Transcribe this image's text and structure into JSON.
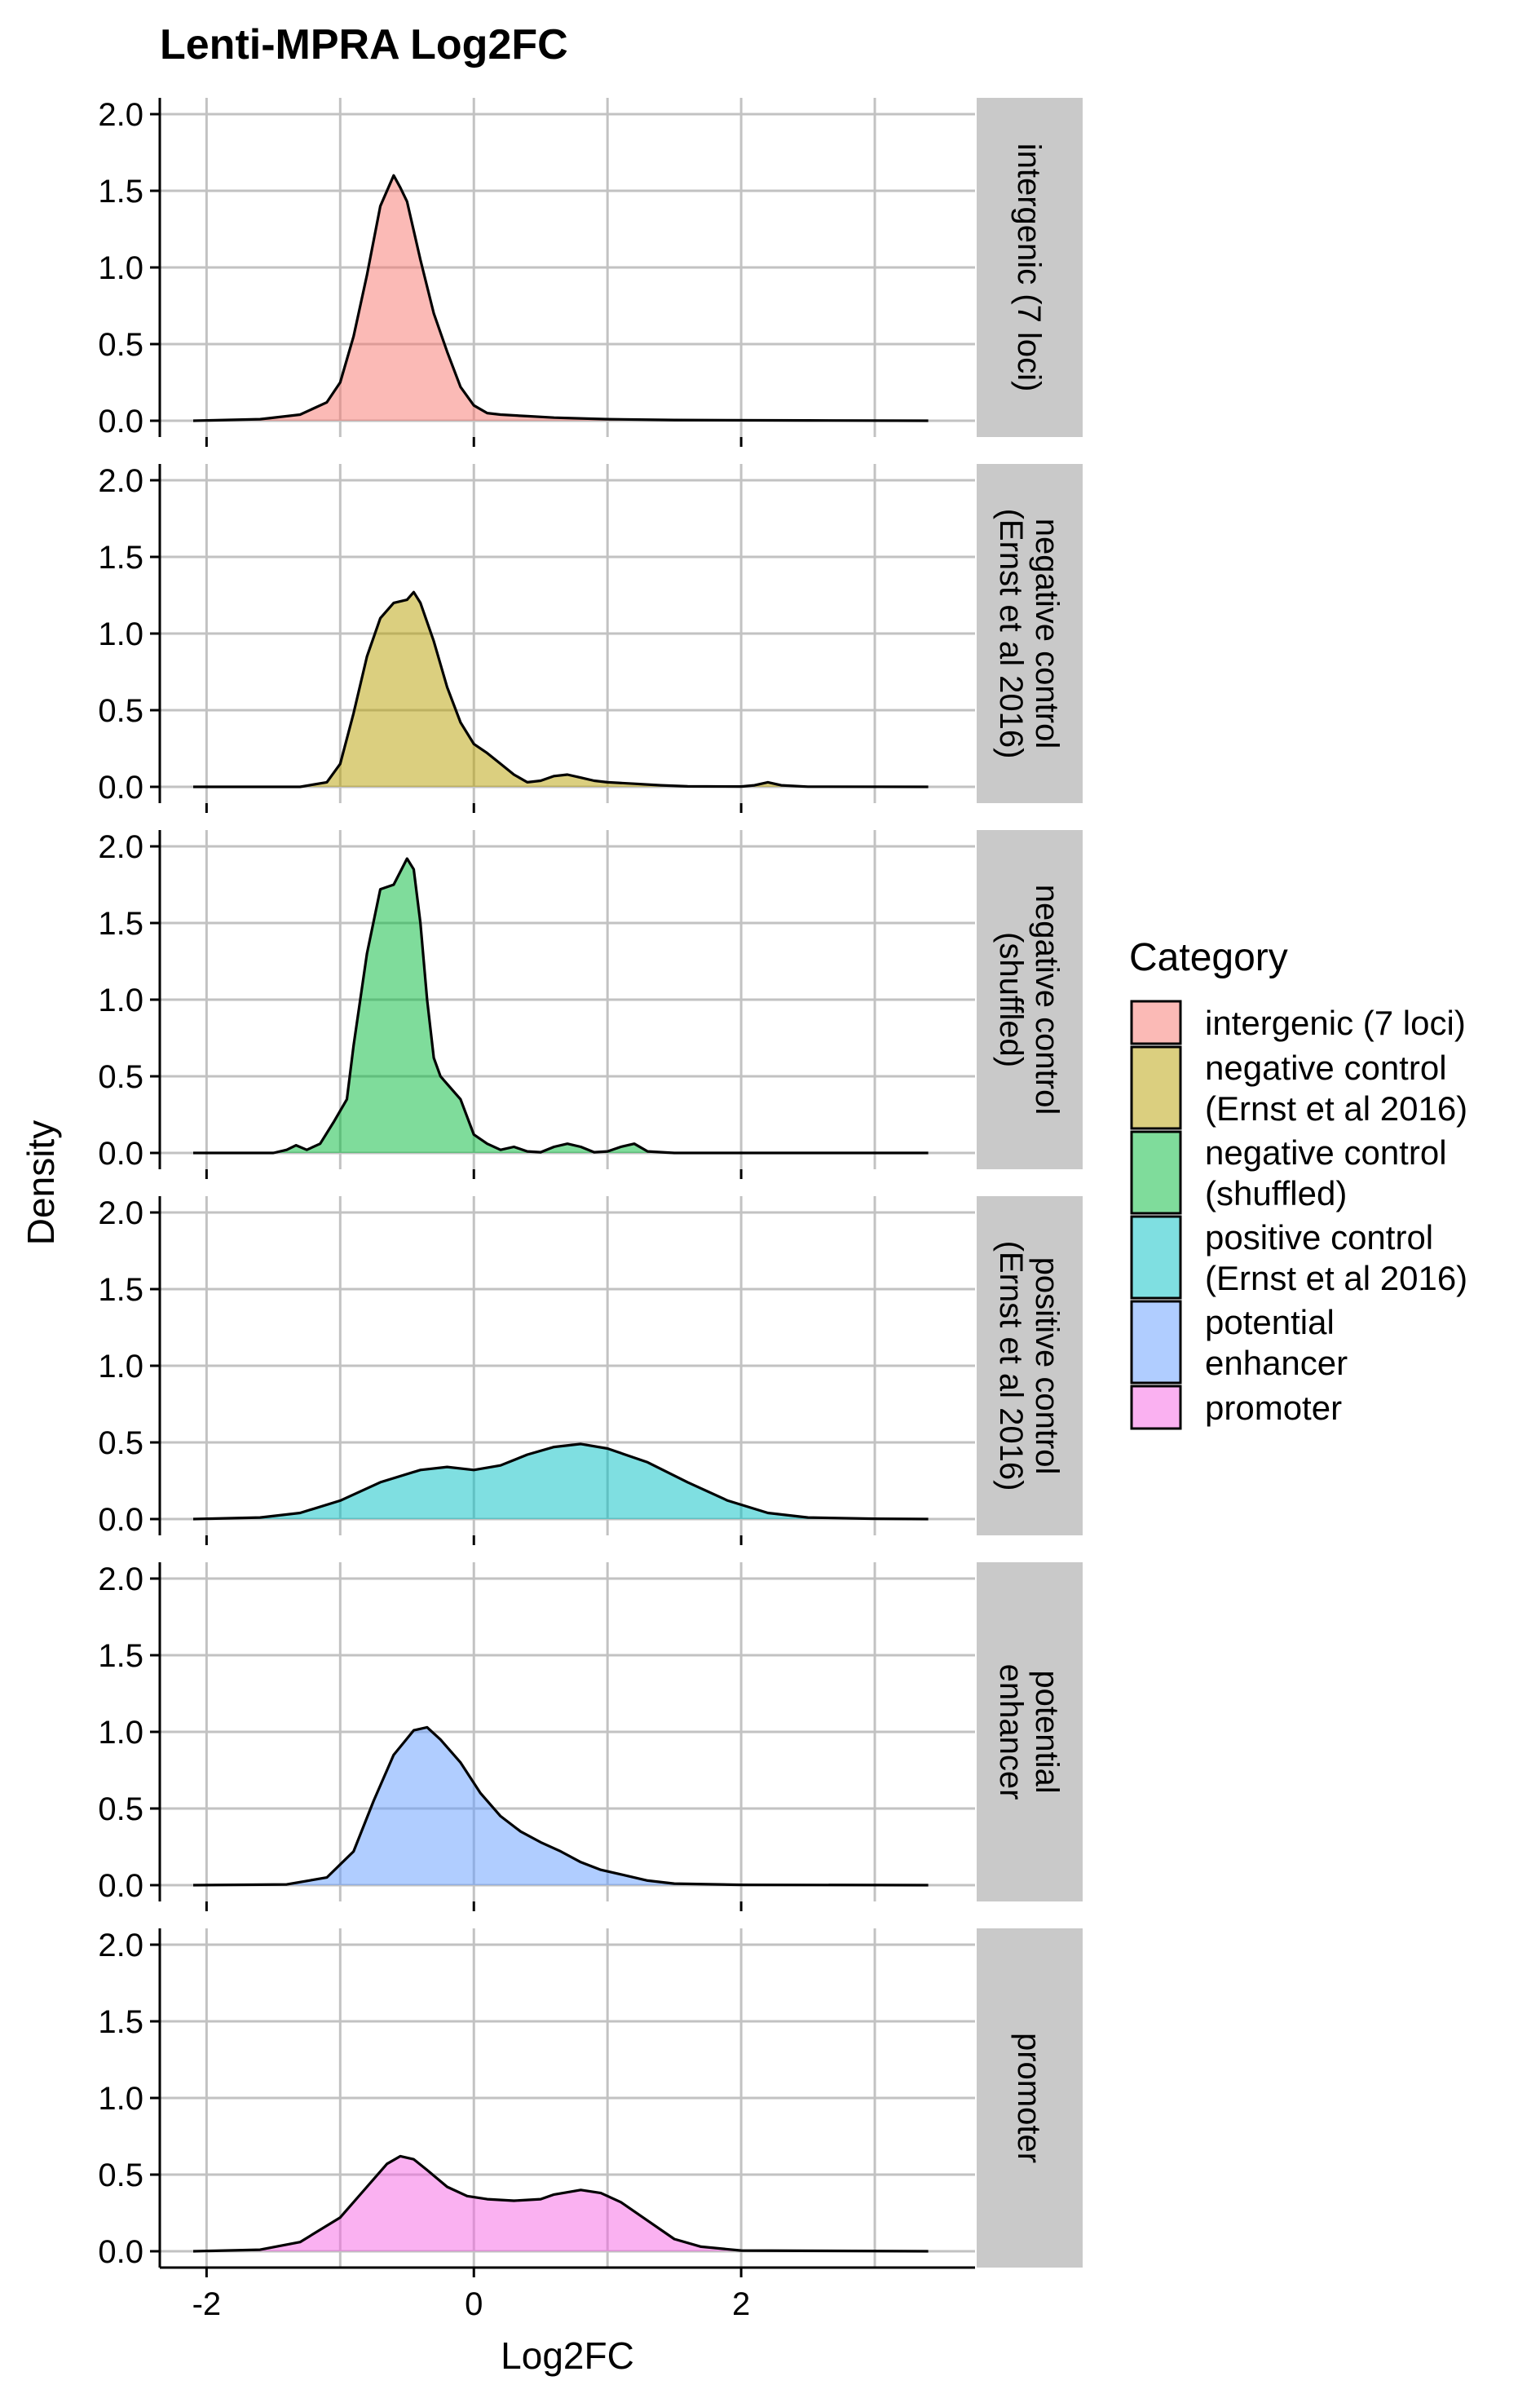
{
  "chart_data": {
    "type": "area",
    "subtype": "faceted density plot",
    "title": "Lenti-MPRA Log2FC",
    "xlabel": "Log2FC",
    "ylabel": "Density",
    "xlim": [
      -2.35,
      3.75
    ],
    "ylim": [
      0,
      2.0
    ],
    "x_ticks": [
      -2,
      0,
      2
    ],
    "x_tick_labels": [
      "-2",
      "0",
      "2"
    ],
    "x_gridlines": [
      -2,
      -1,
      0,
      1,
      2,
      3
    ],
    "y_ticks": [
      0,
      0.5,
      1.0,
      1.5,
      2.0
    ],
    "y_tick_labels": [
      "0.0",
      "0.5",
      "1.0",
      "1.5",
      "2.0"
    ],
    "grid": true,
    "legend": {
      "title": "Category",
      "position": "right",
      "entries": [
        {
          "lines": [
            "intergenic (7 loci)"
          ],
          "color": "#F8766D"
        },
        {
          "lines": [
            "negative control",
            "(Ernst et al 2016)"
          ],
          "color": "#B79F00"
        },
        {
          "lines": [
            "negative control",
            "(shuffled)"
          ],
          "color": "#00BA38"
        },
        {
          "lines": [
            "positive control",
            "(Ernst et al 2016)"
          ],
          "color": "#00BFC4"
        },
        {
          "lines": [
            "potential",
            "enhancer"
          ],
          "color": "#619CFF"
        },
        {
          "lines": [
            "promoter"
          ],
          "color": "#F564E3"
        }
      ]
    },
    "series": [
      {
        "name": "intergenic (7 loci)",
        "strip_lines": [
          "intergenic (7 loci)"
        ],
        "color": "#F8766D",
        "points": [
          [
            -2.1,
            0
          ],
          [
            -1.6,
            0.01
          ],
          [
            -1.3,
            0.04
          ],
          [
            -1.1,
            0.12
          ],
          [
            -1.0,
            0.25
          ],
          [
            -0.9,
            0.55
          ],
          [
            -0.8,
            0.95
          ],
          [
            -0.7,
            1.4
          ],
          [
            -0.6,
            1.6
          ],
          [
            -0.55,
            1.52
          ],
          [
            -0.5,
            1.43
          ],
          [
            -0.4,
            1.05
          ],
          [
            -0.3,
            0.7
          ],
          [
            -0.2,
            0.45
          ],
          [
            -0.1,
            0.22
          ],
          [
            0,
            0.1
          ],
          [
            0.1,
            0.05
          ],
          [
            0.2,
            0.04
          ],
          [
            0.4,
            0.03
          ],
          [
            0.6,
            0.02
          ],
          [
            1.0,
            0.01
          ],
          [
            1.5,
            0.005
          ],
          [
            2.5,
            0.002
          ],
          [
            3.4,
            0
          ]
        ]
      },
      {
        "name": "negative control (Ernst et al 2016)",
        "strip_lines": [
          "negative control",
          "(Ernst et al 2016)"
        ],
        "color": "#B79F00",
        "points": [
          [
            -2.1,
            0
          ],
          [
            -1.3,
            0
          ],
          [
            -1.1,
            0.03
          ],
          [
            -1.0,
            0.15
          ],
          [
            -0.9,
            0.48
          ],
          [
            -0.8,
            0.85
          ],
          [
            -0.7,
            1.1
          ],
          [
            -0.6,
            1.2
          ],
          [
            -0.5,
            1.22
          ],
          [
            -0.45,
            1.27
          ],
          [
            -0.4,
            1.2
          ],
          [
            -0.3,
            0.95
          ],
          [
            -0.2,
            0.65
          ],
          [
            -0.1,
            0.42
          ],
          [
            0,
            0.28
          ],
          [
            0.1,
            0.22
          ],
          [
            0.2,
            0.15
          ],
          [
            0.3,
            0.08
          ],
          [
            0.4,
            0.03
          ],
          [
            0.5,
            0.04
          ],
          [
            0.6,
            0.07
          ],
          [
            0.7,
            0.08
          ],
          [
            0.8,
            0.06
          ],
          [
            0.9,
            0.04
          ],
          [
            1.0,
            0.03
          ],
          [
            1.2,
            0.02
          ],
          [
            1.4,
            0.01
          ],
          [
            1.6,
            0.003
          ],
          [
            2.0,
            0.002
          ],
          [
            2.1,
            0.01
          ],
          [
            2.2,
            0.03
          ],
          [
            2.3,
            0.01
          ],
          [
            2.5,
            0.001
          ],
          [
            3.4,
            0
          ]
        ]
      },
      {
        "name": "negative control (shuffled)",
        "strip_lines": [
          "negative control",
          "(shuffled)"
        ],
        "color": "#00BA38",
        "points": [
          [
            -2.1,
            0
          ],
          [
            -1.5,
            0
          ],
          [
            -1.4,
            0.02
          ],
          [
            -1.33,
            0.05
          ],
          [
            -1.25,
            0.02
          ],
          [
            -1.15,
            0.06
          ],
          [
            -1.05,
            0.2
          ],
          [
            -0.95,
            0.35
          ],
          [
            -0.9,
            0.7
          ],
          [
            -0.8,
            1.3
          ],
          [
            -0.7,
            1.72
          ],
          [
            -0.6,
            1.75
          ],
          [
            -0.5,
            1.92
          ],
          [
            -0.45,
            1.85
          ],
          [
            -0.4,
            1.5
          ],
          [
            -0.35,
            1.0
          ],
          [
            -0.3,
            0.62
          ],
          [
            -0.25,
            0.5
          ],
          [
            -0.2,
            0.45
          ],
          [
            -0.1,
            0.35
          ],
          [
            0,
            0.12
          ],
          [
            0.1,
            0.06
          ],
          [
            0.2,
            0.02
          ],
          [
            0.3,
            0.04
          ],
          [
            0.4,
            0.01
          ],
          [
            0.5,
            0.005
          ],
          [
            0.6,
            0.04
          ],
          [
            0.7,
            0.06
          ],
          [
            0.8,
            0.04
          ],
          [
            0.9,
            0.005
          ],
          [
            1.0,
            0.01
          ],
          [
            1.1,
            0.04
          ],
          [
            1.2,
            0.06
          ],
          [
            1.3,
            0.01
          ],
          [
            1.5,
            0
          ],
          [
            3.4,
            0
          ]
        ]
      },
      {
        "name": "positive control (Ernst et al 2016)",
        "strip_lines": [
          "positive control",
          "(Ernst et al 2016)"
        ],
        "color": "#00BFC4",
        "points": [
          [
            -2.1,
            0
          ],
          [
            -1.6,
            0.01
          ],
          [
            -1.3,
            0.04
          ],
          [
            -1.0,
            0.12
          ],
          [
            -0.7,
            0.24
          ],
          [
            -0.4,
            0.32
          ],
          [
            -0.2,
            0.34
          ],
          [
            0,
            0.32
          ],
          [
            0.2,
            0.35
          ],
          [
            0.4,
            0.42
          ],
          [
            0.6,
            0.47
          ],
          [
            0.8,
            0.49
          ],
          [
            1.0,
            0.46
          ],
          [
            1.3,
            0.37
          ],
          [
            1.6,
            0.24
          ],
          [
            1.9,
            0.12
          ],
          [
            2.2,
            0.04
          ],
          [
            2.5,
            0.01
          ],
          [
            3.0,
            0.002
          ],
          [
            3.4,
            0
          ]
        ]
      },
      {
        "name": "potential enhancer",
        "strip_lines": [
          "potential",
          "enhancer"
        ],
        "color": "#619CFF",
        "points": [
          [
            -2.1,
            0
          ],
          [
            -1.4,
            0.005
          ],
          [
            -1.1,
            0.05
          ],
          [
            -0.9,
            0.22
          ],
          [
            -0.75,
            0.55
          ],
          [
            -0.6,
            0.85
          ],
          [
            -0.45,
            1.01
          ],
          [
            -0.35,
            1.03
          ],
          [
            -0.25,
            0.95
          ],
          [
            -0.1,
            0.8
          ],
          [
            0.05,
            0.6
          ],
          [
            0.2,
            0.45
          ],
          [
            0.35,
            0.35
          ],
          [
            0.5,
            0.28
          ],
          [
            0.65,
            0.22
          ],
          [
            0.8,
            0.15
          ],
          [
            0.95,
            0.1
          ],
          [
            1.1,
            0.07
          ],
          [
            1.3,
            0.03
          ],
          [
            1.5,
            0.01
          ],
          [
            2.0,
            0.002
          ],
          [
            3.4,
            0
          ]
        ]
      },
      {
        "name": "promoter",
        "strip_lines": [
          "promoter"
        ],
        "color": "#F564E3",
        "points": [
          [
            -2.1,
            0
          ],
          [
            -1.6,
            0.01
          ],
          [
            -1.3,
            0.06
          ],
          [
            -1.0,
            0.22
          ],
          [
            -0.8,
            0.42
          ],
          [
            -0.65,
            0.57
          ],
          [
            -0.55,
            0.62
          ],
          [
            -0.45,
            0.6
          ],
          [
            -0.35,
            0.53
          ],
          [
            -0.2,
            0.42
          ],
          [
            -0.05,
            0.36
          ],
          [
            0.1,
            0.34
          ],
          [
            0.3,
            0.33
          ],
          [
            0.5,
            0.34
          ],
          [
            0.6,
            0.37
          ],
          [
            0.8,
            0.4
          ],
          [
            0.95,
            0.38
          ],
          [
            1.1,
            0.32
          ],
          [
            1.3,
            0.2
          ],
          [
            1.5,
            0.08
          ],
          [
            1.7,
            0.03
          ],
          [
            2.0,
            0.005
          ],
          [
            3.4,
            0
          ]
        ]
      }
    ]
  }
}
